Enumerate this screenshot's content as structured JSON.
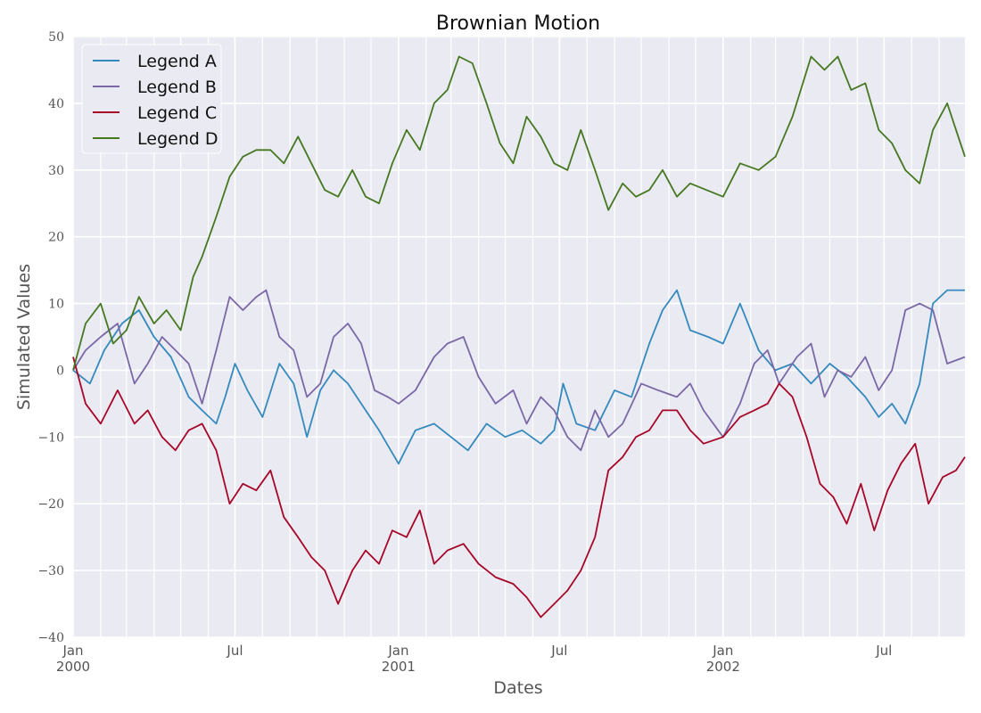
{
  "chart_data": {
    "type": "line",
    "title": "Brownian Motion",
    "xlabel": "Dates",
    "ylabel": "Simulated Values",
    "ylim": [
      -40,
      50
    ],
    "xlim": [
      "2000-01-01",
      "2002-09-30"
    ],
    "grid": true,
    "legend_position": "top-left",
    "y_ticks": [
      {
        "value": 50,
        "label": "50"
      },
      {
        "value": 40,
        "label": "40"
      },
      {
        "value": 30,
        "label": "30"
      },
      {
        "value": 20,
        "label": "20"
      },
      {
        "value": 10,
        "label": "10"
      },
      {
        "value": 0,
        "label": "0"
      },
      {
        "value": -10,
        "label": "−10"
      },
      {
        "value": -20,
        "label": "−20"
      },
      {
        "value": -30,
        "label": "−30"
      },
      {
        "value": -40,
        "label": "−40"
      }
    ],
    "x_ticks": [
      {
        "date": "2000-01-01",
        "label": "Jan",
        "sublabel": "2000"
      },
      {
        "date": "2000-07-01",
        "label": "Jul",
        "sublabel": ""
      },
      {
        "date": "2001-01-01",
        "label": "Jan",
        "sublabel": "2001"
      },
      {
        "date": "2001-07-01",
        "label": "Jul",
        "sublabel": ""
      },
      {
        "date": "2002-01-01",
        "label": "Jan",
        "sublabel": "2002"
      },
      {
        "date": "2002-07-01",
        "label": "Jul",
        "sublabel": ""
      }
    ],
    "x_minor_ticks": [
      "2000-02-01",
      "2000-03-01",
      "2000-04-01",
      "2000-05-01",
      "2000-06-01",
      "2000-08-01",
      "2000-09-01",
      "2000-10-01",
      "2000-11-01",
      "2000-12-01",
      "2001-02-01",
      "2001-03-01",
      "2001-04-01",
      "2001-05-01",
      "2001-06-01",
      "2001-08-01",
      "2001-09-01",
      "2001-10-01",
      "2001-11-01",
      "2001-12-01",
      "2002-02-01",
      "2002-03-01",
      "2002-04-01",
      "2002-05-01",
      "2002-06-01",
      "2002-08-01",
      "2002-09-01"
    ],
    "series": [
      {
        "name": "Legend A",
        "color": "#348abd",
        "points": [
          [
            "2000-01-01",
            0
          ],
          [
            "2000-01-20",
            -2
          ],
          [
            "2000-02-05",
            3
          ],
          [
            "2000-02-25",
            7
          ],
          [
            "2000-03-15",
            9
          ],
          [
            "2000-04-01",
            5
          ],
          [
            "2000-04-20",
            2
          ],
          [
            "2000-05-10",
            -4
          ],
          [
            "2000-05-25",
            -6
          ],
          [
            "2000-06-10",
            -8
          ],
          [
            "2000-06-20",
            -4
          ],
          [
            "2000-07-01",
            1
          ],
          [
            "2000-07-15",
            -3
          ],
          [
            "2000-08-01",
            -7
          ],
          [
            "2000-08-20",
            1
          ],
          [
            "2000-09-05",
            -2
          ],
          [
            "2000-09-20",
            -10
          ],
          [
            "2000-10-05",
            -3
          ],
          [
            "2000-10-20",
            0
          ],
          [
            "2000-11-05",
            -2
          ],
          [
            "2000-11-20",
            -5
          ],
          [
            "2000-12-10",
            -9
          ],
          [
            "2001-01-01",
            -14
          ],
          [
            "2001-01-20",
            -9
          ],
          [
            "2001-02-10",
            -8
          ],
          [
            "2001-03-01",
            -10
          ],
          [
            "2001-03-20",
            -12
          ],
          [
            "2001-04-10",
            -8
          ],
          [
            "2001-05-01",
            -10
          ],
          [
            "2001-05-20",
            -9
          ],
          [
            "2001-06-10",
            -11
          ],
          [
            "2001-06-25",
            -9
          ],
          [
            "2001-07-05",
            -2
          ],
          [
            "2001-07-20",
            -8
          ],
          [
            "2001-08-10",
            -9
          ],
          [
            "2001-09-01",
            -3
          ],
          [
            "2001-09-20",
            -4
          ],
          [
            "2001-10-10",
            4
          ],
          [
            "2001-10-25",
            9
          ],
          [
            "2001-11-10",
            12
          ],
          [
            "2001-11-25",
            6
          ],
          [
            "2001-12-15",
            5
          ],
          [
            "2002-01-01",
            4
          ],
          [
            "2002-01-20",
            10
          ],
          [
            "2002-02-10",
            3
          ],
          [
            "2002-03-01",
            0
          ],
          [
            "2002-03-20",
            1
          ],
          [
            "2002-04-10",
            -2
          ],
          [
            "2002-05-01",
            1
          ],
          [
            "2002-05-20",
            -1
          ],
          [
            "2002-06-10",
            -4
          ],
          [
            "2002-06-25",
            -7
          ],
          [
            "2002-07-10",
            -5
          ],
          [
            "2002-07-25",
            -8
          ],
          [
            "2002-08-10",
            -2
          ],
          [
            "2002-08-25",
            10
          ],
          [
            "2002-09-10",
            12
          ],
          [
            "2002-09-30",
            12
          ]
        ]
      },
      {
        "name": "Legend B",
        "color": "#7a68a6",
        "points": [
          [
            "2000-01-01",
            0
          ],
          [
            "2000-01-15",
            3
          ],
          [
            "2000-02-01",
            5
          ],
          [
            "2000-02-20",
            7
          ],
          [
            "2000-03-10",
            -2
          ],
          [
            "2000-03-25",
            1
          ],
          [
            "2000-04-10",
            5
          ],
          [
            "2000-04-25",
            3
          ],
          [
            "2000-05-10",
            1
          ],
          [
            "2000-05-25",
            -5
          ],
          [
            "2000-06-10",
            3
          ],
          [
            "2000-06-25",
            11
          ],
          [
            "2000-07-10",
            9
          ],
          [
            "2000-07-25",
            11
          ],
          [
            "2000-08-05",
            12
          ],
          [
            "2000-08-20",
            5
          ],
          [
            "2000-09-05",
            3
          ],
          [
            "2000-09-20",
            -4
          ],
          [
            "2000-10-05",
            -2
          ],
          [
            "2000-10-20",
            5
          ],
          [
            "2000-11-05",
            7
          ],
          [
            "2000-11-20",
            4
          ],
          [
            "2000-12-05",
            -3
          ],
          [
            "2000-12-20",
            -4
          ],
          [
            "2001-01-01",
            -5
          ],
          [
            "2001-01-20",
            -3
          ],
          [
            "2001-02-10",
            2
          ],
          [
            "2001-02-25",
            4
          ],
          [
            "2001-03-15",
            5
          ],
          [
            "2001-04-01",
            -1
          ],
          [
            "2001-04-20",
            -5
          ],
          [
            "2001-05-10",
            -3
          ],
          [
            "2001-05-25",
            -8
          ],
          [
            "2001-06-10",
            -4
          ],
          [
            "2001-06-25",
            -6
          ],
          [
            "2001-07-10",
            -10
          ],
          [
            "2001-07-25",
            -12
          ],
          [
            "2001-08-10",
            -6
          ],
          [
            "2001-08-25",
            -10
          ],
          [
            "2001-09-10",
            -8
          ],
          [
            "2001-10-01",
            -2
          ],
          [
            "2001-10-20",
            -3
          ],
          [
            "2001-11-10",
            -4
          ],
          [
            "2001-11-25",
            -2
          ],
          [
            "2001-12-10",
            -6
          ],
          [
            "2002-01-01",
            -10
          ],
          [
            "2002-01-20",
            -5
          ],
          [
            "2002-02-05",
            1
          ],
          [
            "2002-02-20",
            3
          ],
          [
            "2002-03-05",
            -2
          ],
          [
            "2002-03-25",
            2
          ],
          [
            "2002-04-10",
            4
          ],
          [
            "2002-04-25",
            -4
          ],
          [
            "2002-05-10",
            0
          ],
          [
            "2002-05-25",
            -1
          ],
          [
            "2002-06-10",
            2
          ],
          [
            "2002-06-25",
            -3
          ],
          [
            "2002-07-10",
            0
          ],
          [
            "2002-07-25",
            9
          ],
          [
            "2002-08-10",
            10
          ],
          [
            "2002-08-25",
            9
          ],
          [
            "2002-09-10",
            1
          ],
          [
            "2002-09-30",
            2
          ]
        ]
      },
      {
        "name": "Legend C",
        "color": "#a60628",
        "points": [
          [
            "2000-01-01",
            2
          ],
          [
            "2000-01-15",
            -5
          ],
          [
            "2000-02-01",
            -8
          ],
          [
            "2000-02-20",
            -3
          ],
          [
            "2000-03-10",
            -8
          ],
          [
            "2000-03-25",
            -6
          ],
          [
            "2000-04-10",
            -10
          ],
          [
            "2000-04-25",
            -12
          ],
          [
            "2000-05-10",
            -9
          ],
          [
            "2000-05-25",
            -8
          ],
          [
            "2000-06-10",
            -12
          ],
          [
            "2000-06-25",
            -20
          ],
          [
            "2000-07-10",
            -17
          ],
          [
            "2000-07-25",
            -18
          ],
          [
            "2000-08-10",
            -15
          ],
          [
            "2000-08-25",
            -22
          ],
          [
            "2000-09-10",
            -25
          ],
          [
            "2000-09-25",
            -28
          ],
          [
            "2000-10-10",
            -30
          ],
          [
            "2000-10-25",
            -35
          ],
          [
            "2000-11-10",
            -30
          ],
          [
            "2000-11-25",
            -27
          ],
          [
            "2000-12-10",
            -29
          ],
          [
            "2000-12-25",
            -24
          ],
          [
            "2001-01-10",
            -25
          ],
          [
            "2001-01-25",
            -21
          ],
          [
            "2001-02-10",
            -29
          ],
          [
            "2001-02-25",
            -27
          ],
          [
            "2001-03-15",
            -26
          ],
          [
            "2001-04-01",
            -29
          ],
          [
            "2001-04-20",
            -31
          ],
          [
            "2001-05-10",
            -32
          ],
          [
            "2001-05-25",
            -34
          ],
          [
            "2001-06-10",
            -37
          ],
          [
            "2001-06-25",
            -35
          ],
          [
            "2001-07-10",
            -33
          ],
          [
            "2001-07-25",
            -30
          ],
          [
            "2001-08-10",
            -25
          ],
          [
            "2001-08-25",
            -15
          ],
          [
            "2001-09-10",
            -13
          ],
          [
            "2001-09-25",
            -10
          ],
          [
            "2001-10-10",
            -9
          ],
          [
            "2001-10-25",
            -6
          ],
          [
            "2001-11-10",
            -6
          ],
          [
            "2001-11-25",
            -9
          ],
          [
            "2001-12-10",
            -11
          ],
          [
            "2002-01-01",
            -10
          ],
          [
            "2002-01-20",
            -7
          ],
          [
            "2002-02-05",
            -6
          ],
          [
            "2002-02-20",
            -5
          ],
          [
            "2002-03-05",
            -2
          ],
          [
            "2002-03-20",
            -4
          ],
          [
            "2002-04-05",
            -10
          ],
          [
            "2002-04-20",
            -17
          ],
          [
            "2002-05-05",
            -19
          ],
          [
            "2002-05-20",
            -23
          ],
          [
            "2002-06-05",
            -17
          ],
          [
            "2002-06-20",
            -24
          ],
          [
            "2002-07-05",
            -18
          ],
          [
            "2002-07-20",
            -14
          ],
          [
            "2002-08-05",
            -11
          ],
          [
            "2002-08-20",
            -20
          ],
          [
            "2002-09-05",
            -16
          ],
          [
            "2002-09-20",
            -15
          ],
          [
            "2002-09-30",
            -13
          ]
        ]
      },
      {
        "name": "Legend D",
        "color": "#467821",
        "points": [
          [
            "2000-01-01",
            0
          ],
          [
            "2000-01-15",
            7
          ],
          [
            "2000-02-01",
            10
          ],
          [
            "2000-02-15",
            4
          ],
          [
            "2000-03-01",
            6
          ],
          [
            "2000-03-15",
            11
          ],
          [
            "2000-04-01",
            7
          ],
          [
            "2000-04-15",
            9
          ],
          [
            "2000-05-01",
            6
          ],
          [
            "2000-05-15",
            14
          ],
          [
            "2000-05-25",
            17
          ],
          [
            "2000-06-10",
            23
          ],
          [
            "2000-06-25",
            29
          ],
          [
            "2000-07-10",
            32
          ],
          [
            "2000-07-25",
            33
          ],
          [
            "2000-08-10",
            33
          ],
          [
            "2000-08-25",
            31
          ],
          [
            "2000-09-10",
            35
          ],
          [
            "2000-09-25",
            31
          ],
          [
            "2000-10-10",
            27
          ],
          [
            "2000-10-25",
            26
          ],
          [
            "2000-11-10",
            30
          ],
          [
            "2000-11-25",
            26
          ],
          [
            "2000-12-10",
            25
          ],
          [
            "2000-12-25",
            31
          ],
          [
            "2001-01-10",
            36
          ],
          [
            "2001-01-25",
            33
          ],
          [
            "2001-02-10",
            40
          ],
          [
            "2001-02-25",
            42
          ],
          [
            "2001-03-10",
            47
          ],
          [
            "2001-03-25",
            46
          ],
          [
            "2001-04-10",
            40
          ],
          [
            "2001-04-25",
            34
          ],
          [
            "2001-05-10",
            31
          ],
          [
            "2001-05-25",
            38
          ],
          [
            "2001-06-10",
            35
          ],
          [
            "2001-06-25",
            31
          ],
          [
            "2001-07-10",
            30
          ],
          [
            "2001-07-25",
            36
          ],
          [
            "2001-08-10",
            30
          ],
          [
            "2001-08-25",
            24
          ],
          [
            "2001-09-10",
            28
          ],
          [
            "2001-09-25",
            26
          ],
          [
            "2001-10-10",
            27
          ],
          [
            "2001-10-25",
            30
          ],
          [
            "2001-11-10",
            26
          ],
          [
            "2001-11-25",
            28
          ],
          [
            "2002-01-01",
            26
          ],
          [
            "2002-01-20",
            31
          ],
          [
            "2002-02-10",
            30
          ],
          [
            "2002-03-01",
            32
          ],
          [
            "2002-03-20",
            38
          ],
          [
            "2002-04-10",
            47
          ],
          [
            "2002-04-25",
            45
          ],
          [
            "2002-05-10",
            47
          ],
          [
            "2002-05-25",
            42
          ],
          [
            "2002-06-10",
            43
          ],
          [
            "2002-06-25",
            36
          ],
          [
            "2002-07-10",
            34
          ],
          [
            "2002-07-25",
            30
          ],
          [
            "2002-08-10",
            28
          ],
          [
            "2002-08-25",
            36
          ],
          [
            "2002-09-10",
            40
          ],
          [
            "2002-09-20",
            36
          ],
          [
            "2002-09-30",
            32
          ]
        ]
      }
    ]
  }
}
